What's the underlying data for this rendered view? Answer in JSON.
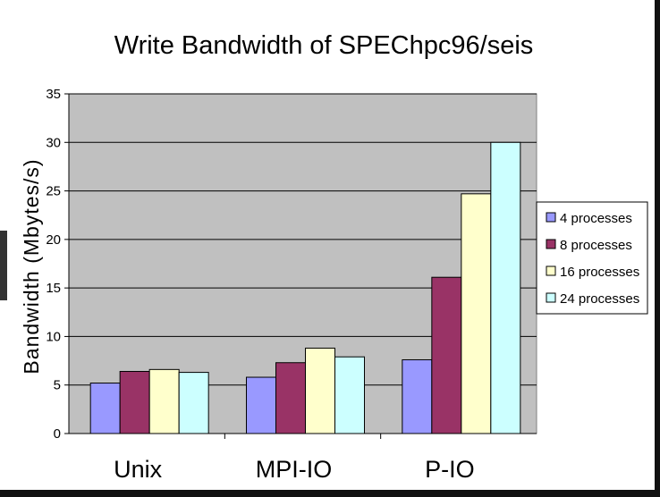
{
  "chart_data": {
    "type": "bar",
    "title": "Write Bandwidth of SPEChpc96/seis",
    "xlabel": "",
    "ylabel": "Bandwidth (Mbytes/s)",
    "ylim": [
      0,
      35
    ],
    "yticks": [
      0,
      5,
      10,
      15,
      20,
      25,
      30,
      35
    ],
    "grid": true,
    "legend_position": "right",
    "categories": [
      "Unix",
      "MPI-IO",
      "P-IO"
    ],
    "series": [
      {
        "name": "4 processes",
        "color": "#9999FF",
        "values": [
          5.2,
          5.8,
          7.6
        ]
      },
      {
        "name": "8 processes",
        "color": "#993366",
        "values": [
          6.4,
          7.3,
          16.1
        ]
      },
      {
        "name": "16 processes",
        "color": "#FFFFCC",
        "values": [
          6.6,
          8.8,
          24.7
        ]
      },
      {
        "name": "24 processes",
        "color": "#CCFFFF",
        "values": [
          6.3,
          7.9,
          30.0
        ]
      }
    ],
    "plot_background": "#C0C0C0"
  }
}
